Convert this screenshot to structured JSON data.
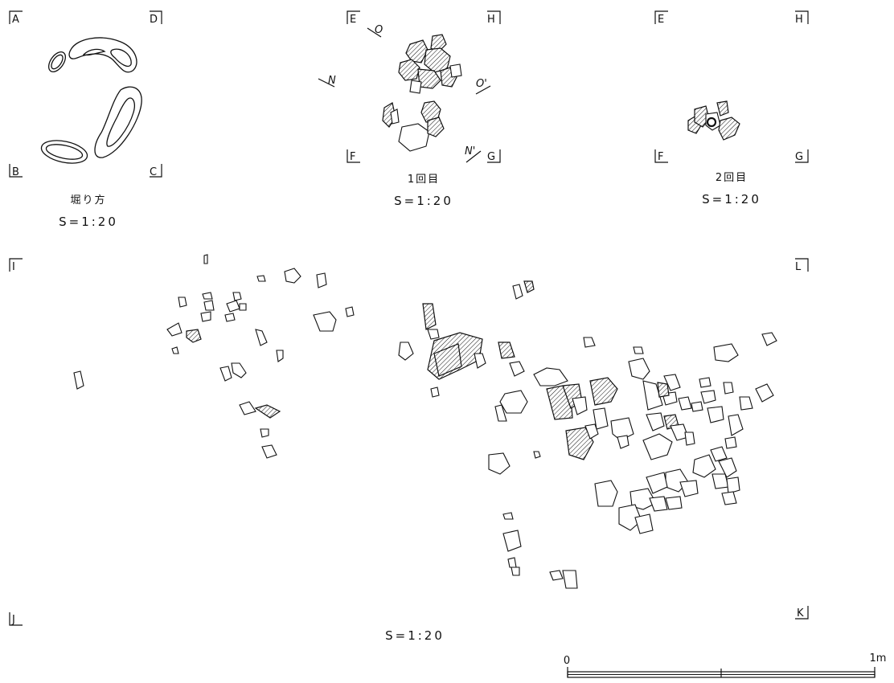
{
  "panels": {
    "pit": {
      "corners": [
        "A",
        "D",
        "B",
        "C"
      ],
      "caption": "堀り方",
      "scale": "S=1:20"
    },
    "first": {
      "corners": [
        "E",
        "H",
        "F",
        "G"
      ],
      "section_marks": [
        "O",
        "O'",
        "N",
        "N'"
      ],
      "caption": "1回目",
      "scale": "S=1:20"
    },
    "second": {
      "corners": [
        "E",
        "H",
        "F",
        "G"
      ],
      "caption": "2回目",
      "scale": "S=1:20"
    },
    "main": {
      "corners": [
        "I",
        "L",
        "J",
        "K"
      ],
      "scale": "S=1:20"
    }
  },
  "scale_bar": {
    "start": "0",
    "end": "1m"
  }
}
